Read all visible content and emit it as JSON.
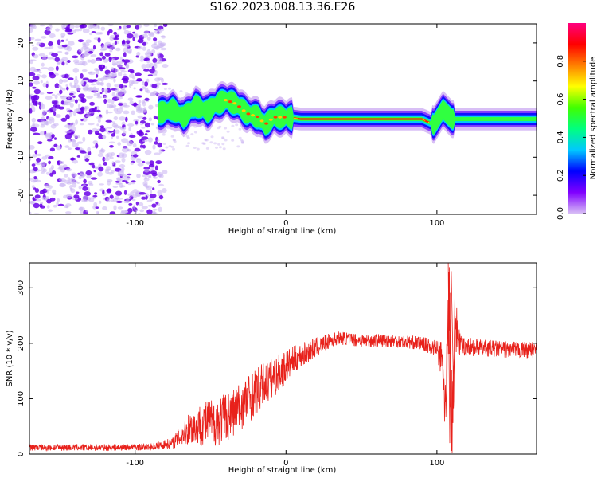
{
  "title": "S162.2023.008.13.36.E26",
  "colors": {
    "snr_line": "#e8211b",
    "speckle_dark": "#6a00e8",
    "speckle_light": "#c9b3f2",
    "colorbar_stops": [
      "#d8bff5",
      "#8000ff",
      "#0000ff",
      "#00c8ff",
      "#00ff80",
      "#40ff00",
      "#ffff00",
      "#ff8000",
      "#ff0000",
      "#ff0080"
    ]
  },
  "chart_data": [
    {
      "type": "heatmap",
      "title": "S162.2023.008.13.36.E26",
      "xlabel": "Height of straight line (km)",
      "ylabel": "Frequency (Hz)",
      "xlim": [
        -170,
        166
      ],
      "ylim": [
        -25,
        25
      ],
      "x_ticks": [
        -100,
        0,
        100
      ],
      "y_ticks": [
        -20,
        -10,
        0,
        10,
        20
      ],
      "colorbar": {
        "label": "Normalized spectral amplitude",
        "range": [
          0,
          1
        ],
        "ticks": [
          0.0,
          0.2,
          0.4,
          0.6,
          0.8
        ]
      },
      "signal_ridge": [
        {
          "x": -85,
          "y": 1.5
        },
        {
          "x": -75,
          "y": 2.5
        },
        {
          "x": -68,
          "y": 0.5
        },
        {
          "x": -60,
          "y": 3.5
        },
        {
          "x": -52,
          "y": 2.0
        },
        {
          "x": -46,
          "y": 4.0
        },
        {
          "x": -40,
          "y": 5.0
        },
        {
          "x": -33,
          "y": 4.0
        },
        {
          "x": -26,
          "y": 1.5
        },
        {
          "x": -18,
          "y": 0.5
        },
        {
          "x": -14,
          "y": -1.5
        },
        {
          "x": -8,
          "y": 0.5
        },
        {
          "x": 0,
          "y": 0.5
        },
        {
          "x": 10,
          "y": 0.0
        },
        {
          "x": 60,
          "y": 0.0
        },
        {
          "x": 90,
          "y": 0.0
        },
        {
          "x": 98,
          "y": -1.5
        },
        {
          "x": 104,
          "y": 2.5
        },
        {
          "x": 110,
          "y": 0.0
        },
        {
          "x": 166,
          "y": 0.0
        }
      ]
    },
    {
      "type": "line",
      "xlabel": "Height of straight line (km)",
      "ylabel": "SNR (10 * v/v)",
      "xlim": [
        -170,
        166
      ],
      "ylim": [
        0,
        345
      ],
      "x_ticks": [
        -100,
        0,
        100
      ],
      "y_ticks": [
        0,
        100,
        200,
        300
      ],
      "series": [
        {
          "x": [
            -170,
            -140,
            -110,
            -90,
            -75,
            -65,
            -55,
            -45,
            -35,
            -25,
            -15,
            -5,
            5,
            15,
            25,
            35,
            50,
            70,
            90,
            100,
            104,
            106,
            108,
            110,
            112,
            116,
            130,
            150,
            166
          ],
          "y": [
            12,
            12,
            12,
            13,
            20,
            45,
            55,
            60,
            75,
            100,
            125,
            145,
            170,
            185,
            200,
            210,
            205,
            205,
            200,
            190,
            160,
            60,
            290,
            60,
            230,
            195,
            192,
            188,
            188
          ],
          "noise": [
            6,
            6,
            6,
            6,
            10,
            30,
            40,
            45,
            45,
            45,
            40,
            35,
            25,
            20,
            15,
            12,
            12,
            12,
            12,
            15,
            50,
            80,
            100,
            90,
            60,
            18,
            15,
            15,
            15
          ]
        }
      ]
    }
  ]
}
